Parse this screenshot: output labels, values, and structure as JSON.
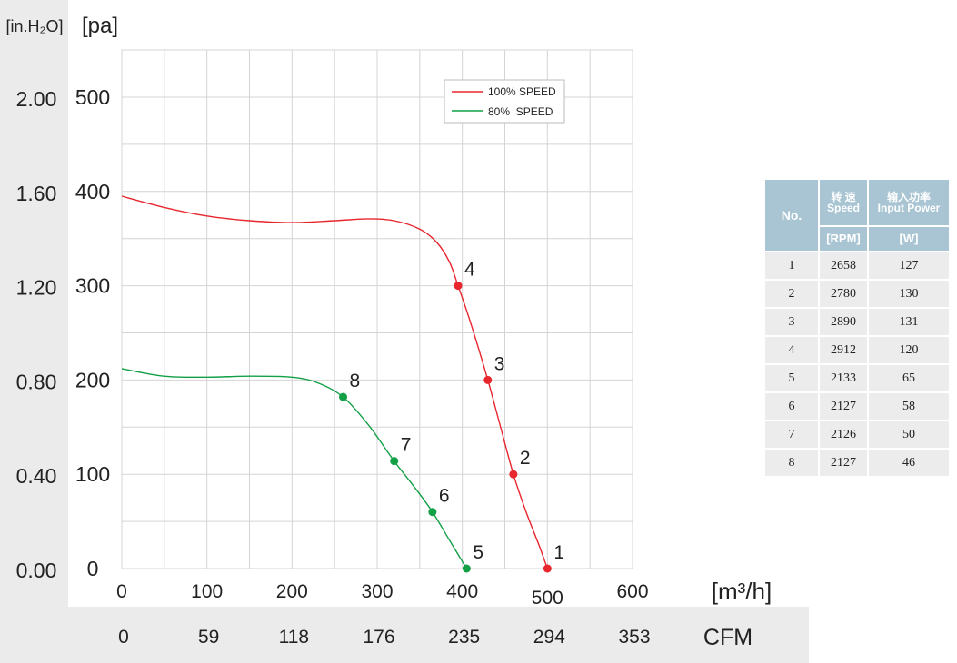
{
  "chart_data": {
    "type": "line",
    "x_axis_primary": {
      "unit_label": "[m³/h]",
      "ticks": [
        "0",
        "100",
        "200",
        "300",
        "400",
        "500",
        "600"
      ],
      "range": [
        0,
        600
      ]
    },
    "x_axis_secondary": {
      "unit_label": "CFM",
      "ticks": [
        "0",
        "59",
        "118",
        "176",
        "235",
        "294",
        "353"
      ]
    },
    "y_axis_primary": {
      "unit_label": "[pa]",
      "ticks": [
        "0",
        "100",
        "200",
        "300",
        "400",
        "500"
      ],
      "range": [
        0,
        500
      ]
    },
    "y_axis_secondary": {
      "unit_label": "[in.H₂O]",
      "ticks": [
        "0.00",
        "0.40",
        "0.80",
        "1.20",
        "1.60",
        "2.00"
      ]
    },
    "grid": true,
    "legend_position": "top-right",
    "series": [
      {
        "name": "100% SPEED",
        "color": "#e8262d",
        "curve": [
          [
            0,
            395
          ],
          [
            50,
            383
          ],
          [
            100,
            374
          ],
          [
            150,
            369
          ],
          [
            200,
            367
          ],
          [
            250,
            369
          ],
          [
            290,
            371
          ],
          [
            320,
            369
          ],
          [
            350,
            360
          ],
          [
            370,
            346
          ],
          [
            385,
            325
          ],
          [
            395,
            300
          ],
          [
            410,
            260
          ],
          [
            430,
            200
          ],
          [
            445,
            150
          ],
          [
            460,
            100
          ],
          [
            475,
            60
          ],
          [
            490,
            25
          ],
          [
            500,
            0
          ]
        ],
        "points": [
          {
            "label": "1",
            "x": 500,
            "y": 0
          },
          {
            "label": "2",
            "x": 460,
            "y": 100
          },
          {
            "label": "3",
            "x": 430,
            "y": 200
          },
          {
            "label": "4",
            "x": 395,
            "y": 300
          }
        ]
      },
      {
        "name": "80%  SPEED",
        "color": "#12a046",
        "curve": [
          [
            0,
            212
          ],
          [
            50,
            204
          ],
          [
            100,
            203
          ],
          [
            150,
            204
          ],
          [
            200,
            203
          ],
          [
            230,
            197
          ],
          [
            260,
            182
          ],
          [
            290,
            152
          ],
          [
            320,
            114
          ],
          [
            345,
            85
          ],
          [
            365,
            60
          ],
          [
            385,
            30
          ],
          [
            405,
            0
          ]
        ],
        "points": [
          {
            "label": "5",
            "x": 405,
            "y": 0
          },
          {
            "label": "6",
            "x": 365,
            "y": 60
          },
          {
            "label": "7",
            "x": 320,
            "y": 114
          },
          {
            "label": "8",
            "x": 260,
            "y": 182
          }
        ]
      }
    ]
  },
  "spec_table": {
    "header": {
      "no": "No.",
      "speed_cn": "转 速",
      "speed_en": "Speed",
      "power_cn": "输入功率",
      "power_en": "Input Power",
      "speed_unit": "[RPM]",
      "power_unit": "[W]"
    },
    "rows": [
      {
        "no": "1",
        "speed": "2658",
        "power": "127"
      },
      {
        "no": "2",
        "speed": "2780",
        "power": "130"
      },
      {
        "no": "3",
        "speed": "2890",
        "power": "131"
      },
      {
        "no": "4",
        "speed": "2912",
        "power": "120"
      },
      {
        "no": "5",
        "speed": "2133",
        "power": "65"
      },
      {
        "no": "6",
        "speed": "2127",
        "power": "58"
      },
      {
        "no": "7",
        "speed": "2126",
        "power": "50"
      },
      {
        "no": "8",
        "speed": "2127",
        "power": "46"
      }
    ]
  },
  "colors": {
    "panel_bg": "#ebebeb",
    "grid_line": "#d4d4d4",
    "table_header": "#a9c5d3",
    "table_cell": "#ececec"
  }
}
